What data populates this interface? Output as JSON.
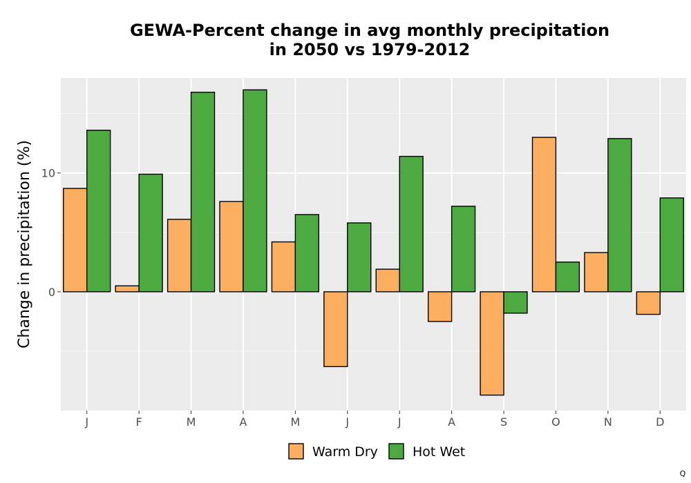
{
  "chart_data": {
    "type": "bar",
    "title": [
      "GEWA-Percent change in avg monthly precipitation",
      "in 2050 vs 1979-2012"
    ],
    "xlabel": "",
    "ylabel": "Change in precipitation (%)",
    "categories": [
      "J",
      "F",
      "M",
      "A",
      "M",
      "J",
      "J",
      "A",
      "S",
      "O",
      "N",
      "D"
    ],
    "series": [
      {
        "name": "Warm Dry",
        "color": "#FDAE61",
        "values": [
          8.7,
          0.5,
          6.1,
          7.6,
          4.2,
          -6.3,
          1.9,
          -2.5,
          -8.7,
          13.0,
          3.3,
          -1.9
        ]
      },
      {
        "name": "Hot Wet",
        "color": "#4DAA40",
        "values": [
          13.6,
          9.9,
          16.8,
          17.0,
          6.5,
          5.8,
          11.4,
          7.2,
          -1.8,
          2.5,
          12.9,
          7.9
        ]
      }
    ],
    "ylim": [
      -10,
      18
    ],
    "yticks": [
      0,
      10
    ],
    "grid": true,
    "legend_position": "bottom",
    "corner_text": "Q"
  }
}
